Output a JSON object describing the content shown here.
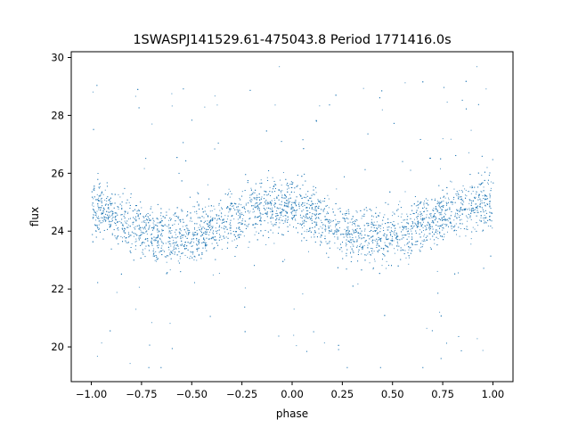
{
  "chart_data": {
    "type": "scatter",
    "title": "1SWASPJ141529.61-475043.8 Period 1771416.0s",
    "xlabel": "phase",
    "ylabel": "flux",
    "xlim": [
      -1.1,
      1.1
    ],
    "ylim": [
      18.8,
      30.2
    ],
    "xticks": [
      -1.0,
      -0.75,
      -0.5,
      -0.25,
      0.0,
      0.25,
      0.5,
      0.75,
      1.0
    ],
    "xtick_labels": [
      "−1.00",
      "−0.75",
      "−0.50",
      "−0.25",
      "0.00",
      "0.25",
      "0.50",
      "0.75",
      "1.00"
    ],
    "yticks": [
      20,
      22,
      24,
      26,
      28,
      30
    ],
    "ytick_labels": [
      "20",
      "22",
      "24",
      "26",
      "28",
      "30"
    ],
    "grid": false,
    "legend": "none",
    "point_color": "#1f77b4",
    "series": [
      {
        "x": [
          -1.0,
          -0.9,
          -0.8,
          -0.7,
          -0.6,
          -0.5,
          -0.4,
          -0.3,
          -0.2,
          -0.1,
          0.0,
          0.1,
          0.2,
          0.3,
          0.4,
          0.5,
          0.6,
          0.7,
          0.8,
          0.9,
          1.0
        ],
        "y": [
          24.9,
          24.6,
          24.2,
          23.9,
          23.8,
          23.9,
          24.1,
          24.4,
          24.8,
          24.9,
          24.9,
          24.6,
          24.2,
          23.9,
          23.8,
          23.9,
          24.1,
          24.4,
          24.8,
          24.9,
          24.9
        ],
        "band": [
          1.4,
          1.3,
          1.3,
          1.3,
          1.4,
          1.4,
          1.3,
          1.3,
          1.4,
          1.5,
          1.4,
          1.3,
          1.3,
          1.3,
          1.4,
          1.4,
          1.3,
          1.3,
          1.4,
          1.5,
          1.4
        ]
      }
    ]
  }
}
